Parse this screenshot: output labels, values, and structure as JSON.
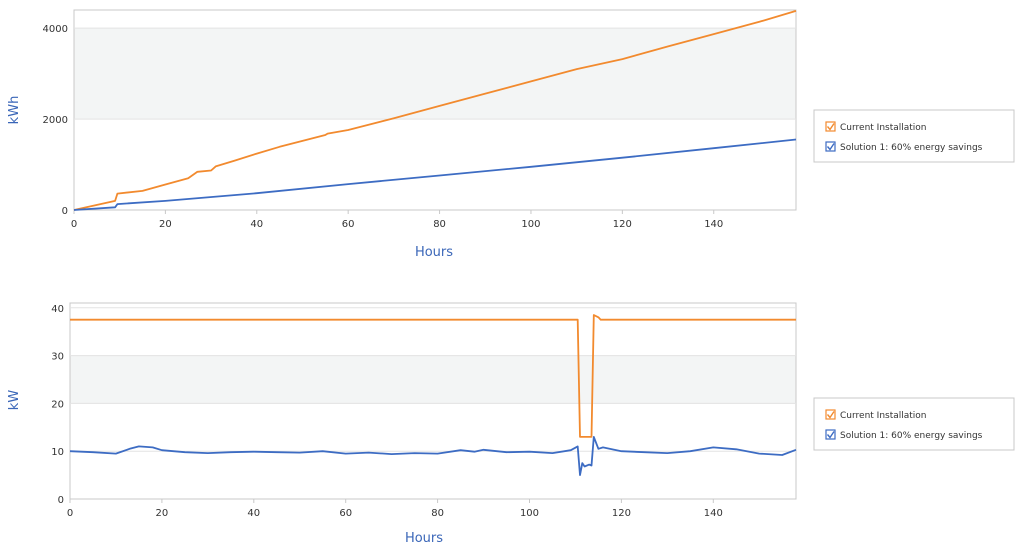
{
  "colors": {
    "orange": "#f28a2e",
    "blue": "#3d6cc3",
    "band": "#f3f5f5",
    "grid": "#e3e3e3",
    "frame": "#c8c8c8",
    "axis_label": "#3a66b8"
  },
  "chart_data": [
    {
      "type": "line",
      "xlabel": "Hours",
      "ylabel": "kWh",
      "xlim": [
        0,
        158
      ],
      "ylim": [
        0,
        4400
      ],
      "x_ticks": [
        0,
        20,
        40,
        60,
        80,
        100,
        120,
        140
      ],
      "y_ticks": [
        0,
        2000,
        4000
      ],
      "banded_interval": [
        2000,
        4000
      ],
      "legend": {
        "placement": "right",
        "entries": [
          "Current Installation",
          "Solution 1: 60% energy savings"
        ]
      },
      "series": [
        {
          "name": "Current Installation",
          "color": "#f28a2e",
          "x": [
            0,
            9,
            9.5,
            15,
            20,
            25,
            27,
            30,
            31,
            35,
            40,
            45,
            50,
            55,
            55.5,
            60,
            70,
            80,
            90,
            100,
            110,
            120,
            130,
            140,
            150,
            158
          ],
          "y": [
            0,
            200,
            360,
            420,
            560,
            700,
            840,
            870,
            960,
            1080,
            1240,
            1390,
            1520,
            1650,
            1680,
            1760,
            2020,
            2290,
            2560,
            2830,
            3100,
            3320,
            3600,
            3870,
            4140,
            4380
          ]
        },
        {
          "name": "Solution 1: 60% energy savings",
          "color": "#3d6cc3",
          "x": [
            0,
            9,
            9.5,
            20,
            40,
            60,
            80,
            100,
            120,
            140,
            158
          ],
          "y": [
            0,
            60,
            130,
            200,
            370,
            570,
            760,
            950,
            1150,
            1360,
            1550
          ]
        }
      ]
    },
    {
      "type": "line",
      "xlabel": "Hours",
      "ylabel": "kW",
      "xlim": [
        0,
        158
      ],
      "ylim": [
        0,
        41
      ],
      "x_ticks": [
        0,
        20,
        40,
        60,
        80,
        100,
        120,
        140
      ],
      "y_ticks": [
        0,
        10,
        20,
        30,
        40
      ],
      "banded_interval": [
        20,
        30
      ],
      "legend": {
        "placement": "right",
        "entries": [
          "Current Installation",
          "Solution 1: 60% energy savings"
        ]
      },
      "series": [
        {
          "name": "Current Installation",
          "color": "#f28a2e",
          "x": [
            0,
            110.5,
            111,
            113.5,
            114,
            115,
            115.5,
            158
          ],
          "y": [
            37.5,
            37.5,
            13,
            13,
            38.5,
            38,
            37.5,
            37.5
          ]
        },
        {
          "name": "Solution 1: 60% energy savings",
          "color": "#3d6cc3",
          "x": [
            0,
            5,
            10,
            13,
            15,
            18,
            20,
            25,
            30,
            35,
            40,
            45,
            50,
            55,
            60,
            65,
            70,
            75,
            80,
            85,
            88,
            90,
            95,
            100,
            105,
            109,
            110.5,
            111,
            111.5,
            112,
            113,
            113.5,
            114,
            115,
            116,
            120,
            125,
            130,
            135,
            140,
            145,
            150,
            155,
            158
          ],
          "y": [
            10,
            9.8,
            9.5,
            10.5,
            11,
            10.8,
            10.2,
            9.8,
            9.6,
            9.8,
            9.9,
            9.8,
            9.7,
            10,
            9.5,
            9.7,
            9.4,
            9.6,
            9.5,
            10.2,
            9.9,
            10.3,
            9.8,
            9.9,
            9.6,
            10.2,
            11,
            5,
            7.5,
            6.8,
            7.2,
            7,
            13,
            10.5,
            10.8,
            10,
            9.8,
            9.6,
            10,
            10.8,
            10.4,
            9.5,
            9.2,
            10.3
          ]
        }
      ]
    }
  ]
}
